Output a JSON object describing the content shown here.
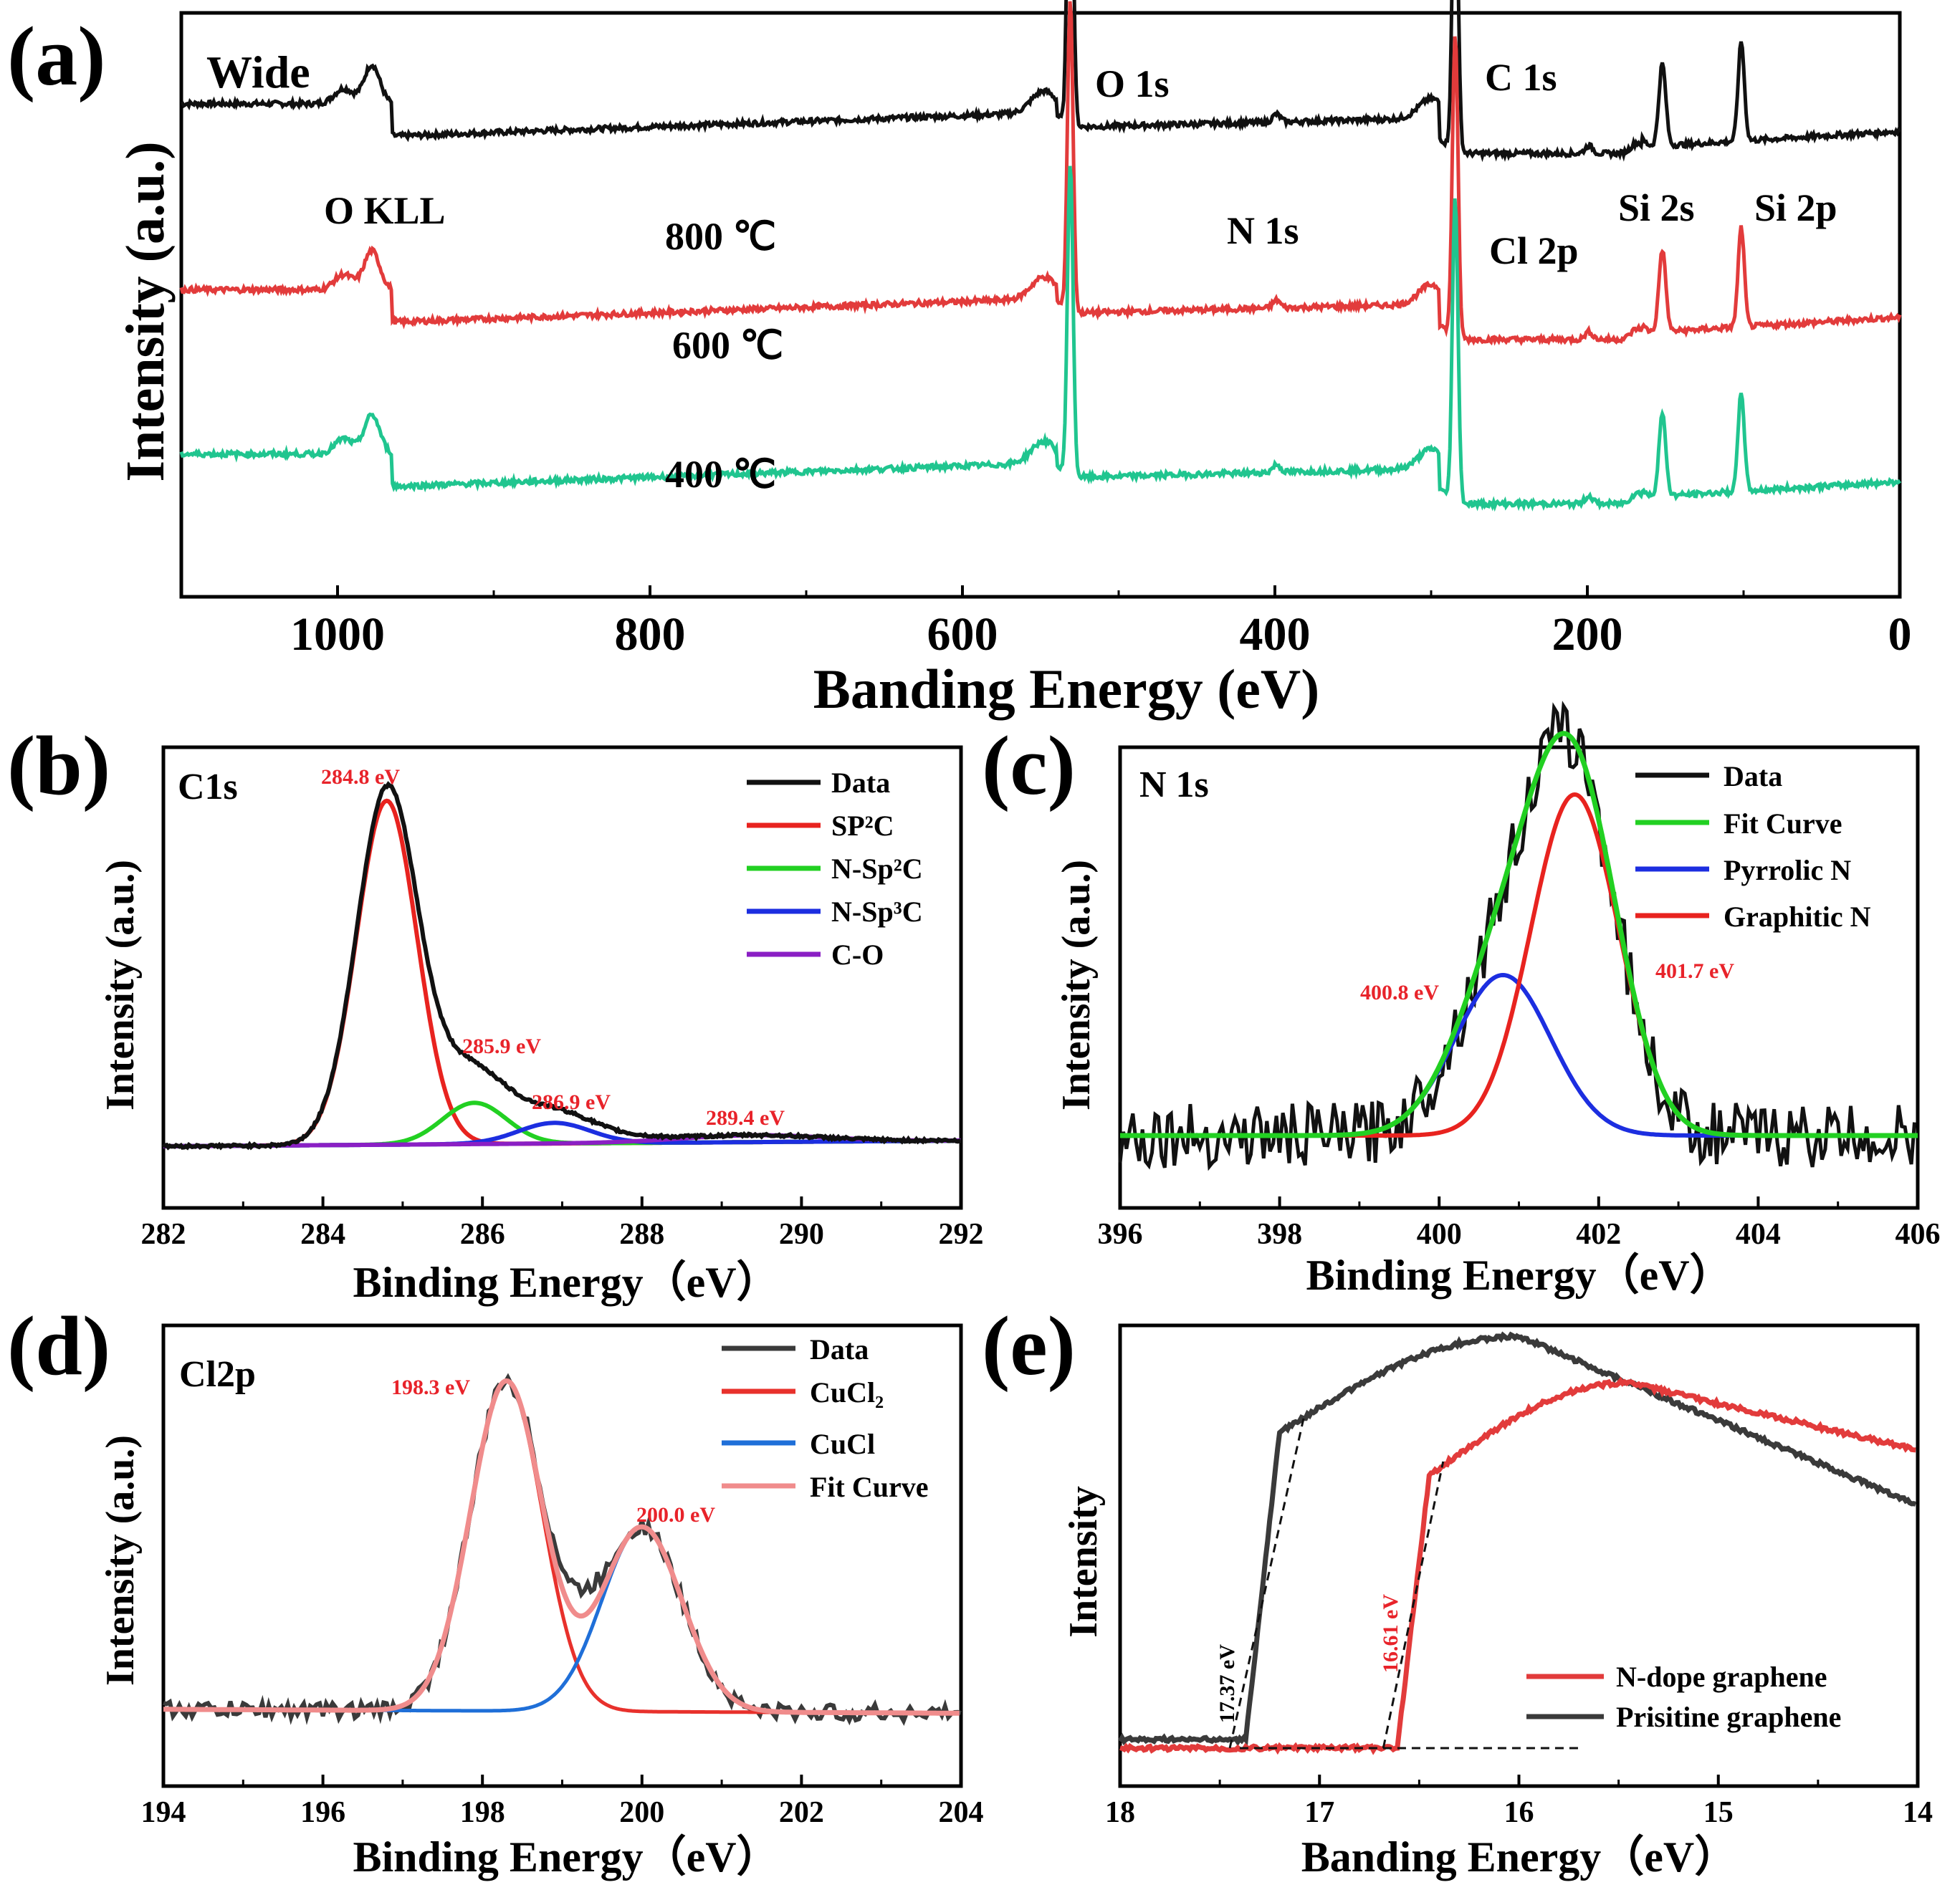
{
  "colors": {
    "black": "#111111",
    "red": "#e23b3b",
    "green_teal": "#20c58f",
    "green": "#22d022",
    "blue": "#1c2ee0",
    "purple": "#8a1fc4",
    "dark_gray": "#3a3a3a",
    "cl_red": "#e8312c",
    "cl_blue": "#1f6fd8",
    "pink": "#f08c8c",
    "peak_label_red": "#e8232a"
  },
  "chart_data": [
    {
      "id": "a",
      "panel_label": "(a)",
      "type": "line",
      "title": "Wide",
      "xlabel": "Banding Energy (eV)",
      "ylabel": "Intensity (a.u.)",
      "xlim": [
        1100,
        0
      ],
      "x_ticks": [
        1000,
        800,
        600,
        400,
        200,
        0
      ],
      "series": [
        {
          "name": "800 ℃",
          "color": "#111111",
          "baseline": 10.5
        },
        {
          "name": "600 ℃",
          "color": "#e23b3b",
          "baseline": 6.2
        },
        {
          "name": "400 ℃",
          "color": "#20c58f",
          "baseline": 2.4
        }
      ],
      "annotations": [
        "O KLL",
        "O 1s",
        "C 1s",
        "N 1s",
        "Cl 2p",
        "Si 2s",
        "Si 2p"
      ],
      "series_labels": [
        "800 ℃",
        "600 ℃",
        "400 ℃"
      ]
    },
    {
      "id": "b",
      "panel_label": "(b)",
      "type": "line",
      "title": "C1s",
      "xlabel": "Binding Energy（eV）",
      "ylabel": "Intensity (a.u.)",
      "xlim": [
        282,
        292
      ],
      "x_ticks": [
        282,
        284,
        286,
        288,
        290,
        292
      ],
      "legend": [
        "Data",
        "SP²C",
        "N-Sp²C",
        "N-Sp³C",
        "C-O"
      ],
      "components": [
        {
          "name": "SP2C",
          "center": 284.8,
          "height": 100,
          "sigma": 0.38
        },
        {
          "name": "N-Sp2C",
          "center": 285.9,
          "height": 12,
          "sigma": 0.4
        },
        {
          "name": "N-Sp3C",
          "center": 286.9,
          "height": 6,
          "sigma": 0.45
        },
        {
          "name": "C-O",
          "center": 289.4,
          "height": 2,
          "sigma": 0.9
        }
      ],
      "peak_labels": [
        "284.8 eV",
        "285.9 eV",
        "286.9 eV",
        "289.4 eV"
      ]
    },
    {
      "id": "c",
      "panel_label": "(c)",
      "type": "line",
      "title": "N 1s",
      "xlabel": "Binding Energy（eV）",
      "ylabel": "Intensity (a.u.)",
      "xlim": [
        396,
        406
      ],
      "x_ticks": [
        396,
        398,
        400,
        402,
        404,
        406
      ],
      "legend": [
        "Data",
        "Fit Curve",
        "Pyrrolic N",
        "Graphitic N"
      ],
      "components": [
        {
          "name": "Pyrrolic N",
          "center": 400.8,
          "height": 40,
          "sigma": 0.6
        },
        {
          "name": "Graphitic N",
          "center": 401.7,
          "height": 85,
          "sigma": 0.55
        }
      ],
      "peak_labels": [
        "400.8 eV",
        "401.7 eV"
      ]
    },
    {
      "id": "d",
      "panel_label": "(d)",
      "type": "line",
      "title": "Cl2p",
      "xlabel": "Binding Energy（eV）",
      "ylabel": "Intensity (a.u.)",
      "xlim": [
        194,
        204
      ],
      "x_ticks": [
        194,
        196,
        198,
        200,
        202,
        204
      ],
      "legend": [
        "Data",
        "CuCl₂",
        "CuCl",
        "Fit Curve"
      ],
      "components": [
        {
          "name": "CuCl2",
          "center": 198.3,
          "height": 100,
          "sigma": 0.45
        },
        {
          "name": "CuCl",
          "center": 200.0,
          "height": 56,
          "sigma": 0.5
        }
      ],
      "peak_labels": [
        "198.3 eV",
        "200.0 eV"
      ]
    },
    {
      "id": "e",
      "panel_label": "(e)",
      "type": "line",
      "xlabel": "Banding Energy（eV）",
      "ylabel": "Intensity",
      "xlim": [
        18,
        14
      ],
      "x_ticks": [
        18,
        17,
        16,
        15,
        14
      ],
      "legend": [
        "N-dope graphene",
        "Prisitine graphene"
      ],
      "cutoffs": [
        {
          "name": "Prisitine graphene",
          "value": 17.37,
          "label": "17.37 eV"
        },
        {
          "name": "N-dope graphene",
          "value": 16.61,
          "label": "16.61 eV"
        }
      ]
    }
  ]
}
